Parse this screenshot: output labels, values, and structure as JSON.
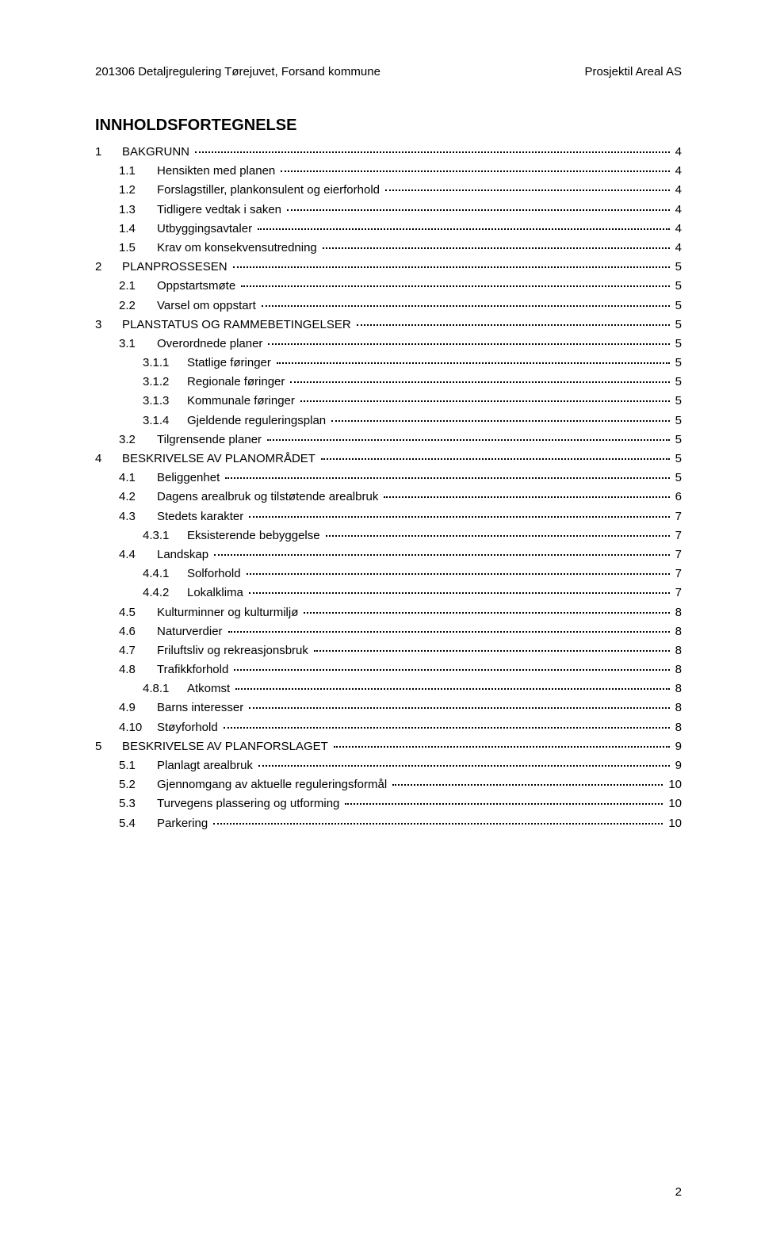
{
  "header": {
    "left": "201306 Detaljregulering Tørejuvet, Forsand kommune",
    "right": "Prosjektil Areal AS"
  },
  "toc_title": "INNHOLDSFORTEGNELSE",
  "page_number": "2",
  "entries": [
    {
      "level": 1,
      "num": "1",
      "label": "BAKGRUNN",
      "page": "4"
    },
    {
      "level": 2,
      "num": "1.1",
      "label": "Hensikten med planen",
      "page": "4"
    },
    {
      "level": 2,
      "num": "1.2",
      "label": "Forslagstiller, plankonsulent og eierforhold",
      "page": "4"
    },
    {
      "level": 2,
      "num": "1.3",
      "label": "Tidligere vedtak i saken",
      "page": "4"
    },
    {
      "level": 2,
      "num": "1.4",
      "label": "Utbyggingsavtaler",
      "page": "4"
    },
    {
      "level": 2,
      "num": "1.5",
      "label": "Krav om konsekvensutredning",
      "page": "4"
    },
    {
      "level": 1,
      "num": "2",
      "label": "PLANPROSSESEN",
      "page": "5"
    },
    {
      "level": 2,
      "num": "2.1",
      "label": "Oppstartsmøte",
      "page": "5"
    },
    {
      "level": 2,
      "num": "2.2",
      "label": "Varsel om oppstart",
      "page": "5"
    },
    {
      "level": 1,
      "num": "3",
      "label": "PLANSTATUS OG RAMMEBETINGELSER",
      "page": "5"
    },
    {
      "level": 2,
      "num": "3.1",
      "label": "Overordnede planer",
      "page": "5"
    },
    {
      "level": 3,
      "num": "3.1.1",
      "label": "Statlige føringer",
      "page": "5"
    },
    {
      "level": 3,
      "num": "3.1.2",
      "label": "Regionale føringer",
      "page": "5"
    },
    {
      "level": 3,
      "num": "3.1.3",
      "label": "Kommunale føringer",
      "page": "5"
    },
    {
      "level": 3,
      "num": "3.1.4",
      "label": "Gjeldende reguleringsplan",
      "page": "5"
    },
    {
      "level": 2,
      "num": "3.2",
      "label": "Tilgrensende planer",
      "page": "5"
    },
    {
      "level": 1,
      "num": "4",
      "label": "BESKRIVELSE AV PLANOMRÅDET",
      "page": "5"
    },
    {
      "level": 2,
      "num": "4.1",
      "label": "Beliggenhet",
      "page": "5"
    },
    {
      "level": 2,
      "num": "4.2",
      "label": "Dagens arealbruk og tilstøtende arealbruk",
      "page": "6"
    },
    {
      "level": 2,
      "num": "4.3",
      "label": "Stedets karakter",
      "page": "7"
    },
    {
      "level": 3,
      "num": "4.3.1",
      "label": "Eksisterende bebyggelse",
      "page": "7"
    },
    {
      "level": 2,
      "num": "4.4",
      "label": "Landskap",
      "page": "7"
    },
    {
      "level": 3,
      "num": "4.4.1",
      "label": "Solforhold",
      "page": "7"
    },
    {
      "level": 3,
      "num": "4.4.2",
      "label": "Lokalklima",
      "page": "7"
    },
    {
      "level": 2,
      "num": "4.5",
      "label": "Kulturminner og kulturmiljø",
      "page": "8"
    },
    {
      "level": 2,
      "num": "4.6",
      "label": "Naturverdier",
      "page": "8"
    },
    {
      "level": 2,
      "num": "4.7",
      "label": "Friluftsliv og rekreasjonsbruk",
      "page": "8"
    },
    {
      "level": 2,
      "num": "4.8",
      "label": "Trafikkforhold",
      "page": "8"
    },
    {
      "level": 3,
      "num": "4.8.1",
      "label": "Atkomst",
      "page": "8"
    },
    {
      "level": 2,
      "num": "4.9",
      "label": "Barns interesser",
      "page": "8"
    },
    {
      "level": 2,
      "num": "4.10",
      "label": "Støyforhold",
      "page": "8"
    },
    {
      "level": 1,
      "num": "5",
      "label": "BESKRIVELSE AV PLANFORSLAGET",
      "page": "9"
    },
    {
      "level": 2,
      "num": "5.1",
      "label": "Planlagt arealbruk",
      "page": "9"
    },
    {
      "level": 2,
      "num": "5.2",
      "label": "Gjennomgang av aktuelle reguleringsformål",
      "page": "10"
    },
    {
      "level": 2,
      "num": "5.3",
      "label": "Turvegens plassering og utforming",
      "page": "10"
    },
    {
      "level": 2,
      "num": "5.4",
      "label": "Parkering",
      "page": "10"
    }
  ]
}
